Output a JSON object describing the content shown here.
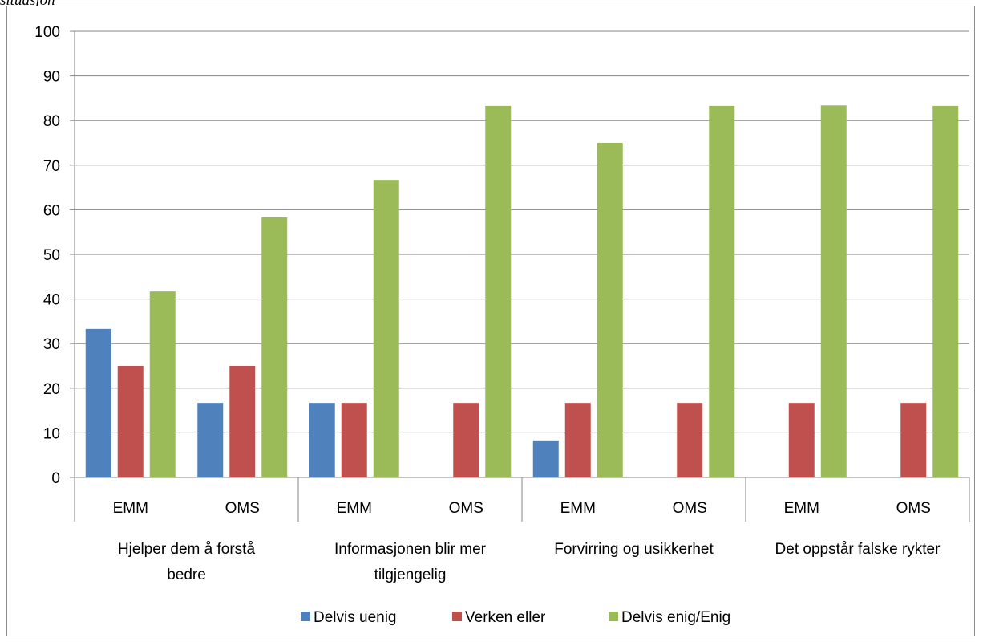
{
  "caption_fragment": "situasjon",
  "chart_data": {
    "type": "bar",
    "title": "",
    "xlabel": "",
    "ylabel": "",
    "ylim": [
      0,
      100
    ],
    "yticks": [
      0,
      10,
      20,
      30,
      40,
      50,
      60,
      70,
      80,
      90,
      100
    ],
    "grid": true,
    "legend_position": "bottom",
    "groups": [
      {
        "label_lines": [
          "Hjelper dem å forstå",
          "bedre"
        ],
        "categories": [
          "EMM",
          "OMS"
        ]
      },
      {
        "label_lines": [
          "Informasjonen blir mer",
          "tilgjengelig"
        ],
        "categories": [
          "EMM",
          "OMS"
        ]
      },
      {
        "label_lines": [
          "Forvirring og usikkerhet"
        ],
        "categories": [
          "EMM",
          "OMS"
        ]
      },
      {
        "label_lines": [
          "Det oppstår falske rykter"
        ],
        "categories": [
          "EMM",
          "OMS"
        ]
      }
    ],
    "series": [
      {
        "name": "Delvis uenig",
        "color": "#4f81bd",
        "values": [
          33.3,
          16.7,
          16.7,
          0,
          8.3,
          0,
          0,
          0
        ]
      },
      {
        "name": "Verken eller",
        "color": "#c0504d",
        "values": [
          25,
          25,
          16.7,
          16.7,
          16.7,
          16.7,
          16.7,
          16.7
        ]
      },
      {
        "name": "Delvis enig/Enig",
        "color": "#9bbb59",
        "values": [
          41.7,
          58.3,
          66.7,
          83.3,
          75,
          83.3,
          83.4,
          83.3
        ]
      }
    ]
  }
}
